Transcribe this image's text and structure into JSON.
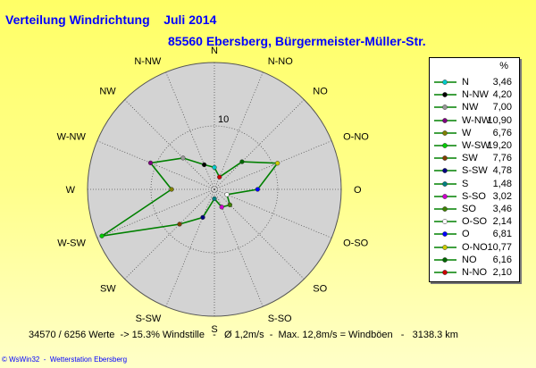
{
  "title": "Verteilung Windrichtung    Juli 2014",
  "subtitle": "85560 Ebersberg, Bürgermeister-Müller-Str.",
  "legend_unit": "%",
  "footer": "34570 / 6256 Werte  -> 15.3% Windstille   -   Ø 1,2m/s  -  Max. 12,8m/s = Windböen   -   3138.3 km",
  "credit": "© WsWin32  -  Wetterstation Ebersberg",
  "colors": {
    "background_top": "#ffff66",
    "plot_disc": "#d3d3d3",
    "polygon_line": "#008000",
    "grid_dotted": "#555555"
  },
  "chart_data": {
    "type": "radar",
    "title": "Verteilung Windrichtung    Juli 2014",
    "radial_label": "10",
    "radial_max": 20,
    "radial_grid": [
      10
    ],
    "directions": [
      "N",
      "N-NW",
      "NW",
      "W-NW",
      "W",
      "W-SW",
      "SW",
      "S-SW",
      "S",
      "S-SO",
      "SO",
      "O-SO",
      "O",
      "O-NO",
      "NO",
      "N-NO"
    ],
    "axis_labels": [
      "N",
      "N-NO",
      "NO",
      "O-NO",
      "O",
      "O-SO",
      "SO",
      "S-SO",
      "S",
      "S-SW",
      "SW",
      "W-SW",
      "W",
      "W-NW",
      "NW",
      "N-NW"
    ],
    "series": [
      {
        "label": "N",
        "value": 3.46,
        "display": "3,46",
        "color": "#00cccc"
      },
      {
        "label": "N-NW",
        "value": 4.2,
        "display": "4,20",
        "color": "#000000"
      },
      {
        "label": "NW",
        "value": 7.0,
        "display": "7,00",
        "color": "#999999"
      },
      {
        "label": "W-NW",
        "value": 10.9,
        "display": "10,90",
        "color": "#800080"
      },
      {
        "label": "W",
        "value": 6.76,
        "display": "6,76",
        "color": "#808000"
      },
      {
        "label": "W-SW",
        "value": 19.2,
        "display": "19,20",
        "color": "#00cc00"
      },
      {
        "label": "SW",
        "value": 7.76,
        "display": "7,76",
        "color": "#804000"
      },
      {
        "label": "S-SW",
        "value": 4.78,
        "display": "4,78",
        "color": "#000080"
      },
      {
        "label": "S",
        "value": 1.48,
        "display": "1,48",
        "color": "#008080"
      },
      {
        "label": "S-SO",
        "value": 3.02,
        "display": "3,02",
        "color": "#cc00cc"
      },
      {
        "label": "SO",
        "value": 3.46,
        "display": "3,46",
        "color": "#408000"
      },
      {
        "label": "O-SO",
        "value": 2.14,
        "display": "2,14",
        "color": "#ffffff"
      },
      {
        "label": "O",
        "value": 6.81,
        "display": "6,81",
        "color": "#0000ff"
      },
      {
        "label": "O-NO",
        "value": 10.77,
        "display": "10,77",
        "color": "#cccc00"
      },
      {
        "label": "NO",
        "value": 6.16,
        "display": "6,16",
        "color": "#006600"
      },
      {
        "label": "N-NO",
        "value": 2.1,
        "display": "2,10",
        "color": "#cc0000"
      }
    ]
  }
}
